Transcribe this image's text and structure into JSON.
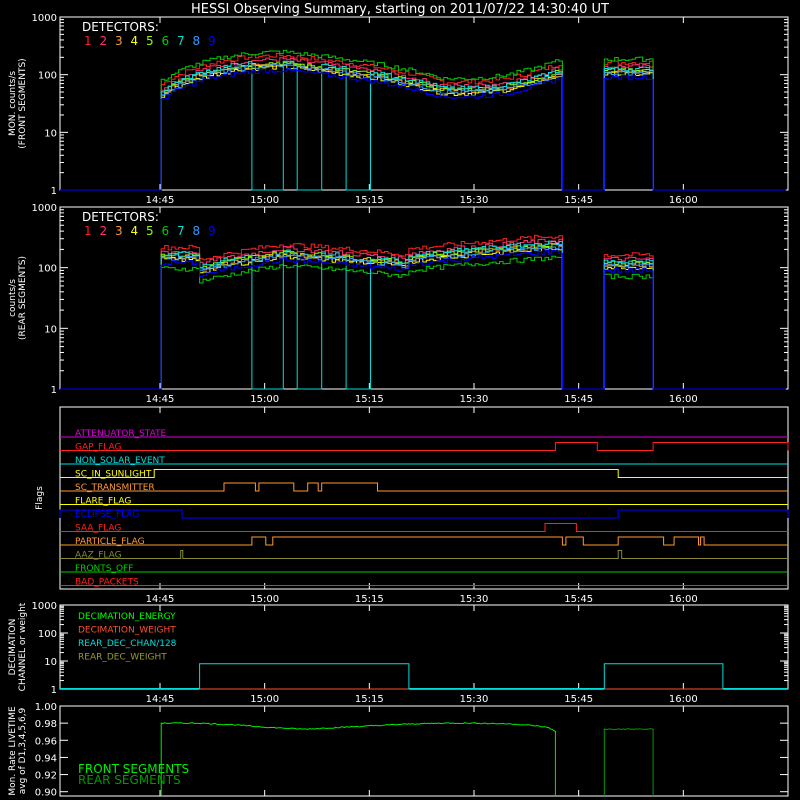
{
  "title": "HESSI Observing Summary, starting on 2011/07/22 14:30:40 UT",
  "time_ticks": [
    "14:45",
    "15:00",
    "15:15",
    "15:30",
    "15:45",
    "16:00"
  ],
  "time_tick_minutes": [
    14.33,
    29.33,
    44.33,
    59.33,
    74.33,
    89.33
  ],
  "time_range_minutes": [
    0,
    104.33
  ],
  "detector_colors": [
    "#ff2020",
    "#ff3070",
    "#ff9933",
    "#ffff00",
    "#88ff00",
    "#00cc00",
    "#00dddd",
    "#3399ff",
    "#0000ff"
  ],
  "chart_data": [
    {
      "type": "line",
      "panel": "front",
      "ylabel": "MON. counts/s (FRONT SEGMENTS)",
      "ylabel_lines": [
        "MON. counts/s",
        "(FRONT SEGMENTS)"
      ],
      "yscale": "log",
      "ylim": [
        1,
        1000
      ],
      "ytick_labels": [
        "1",
        "10",
        "100",
        "1000"
      ],
      "legend_title": "DETECTORS:",
      "legend_items": [
        "1",
        "2",
        "3",
        "4",
        "5",
        "6",
        "7",
        "8",
        "9"
      ],
      "data_gaps_minutes": [
        [
          0,
          14.5
        ],
        [
          72,
          78
        ],
        [
          85,
          104.33
        ]
      ],
      "typical_counts": {
        "start": 50,
        "peak_time_min": 32,
        "peak": 160,
        "dip_time_min": 55,
        "dip": 55,
        "end_before_gap": 120,
        "after_gap": 120
      },
      "detector_spread_factor": [
        0.5,
        2.0
      ],
      "det7_dropouts_minutes": [
        [
          27.5,
          32
        ],
        [
          34,
          37.5
        ],
        [
          41,
          44.5
        ]
      ]
    },
    {
      "type": "line",
      "panel": "rear",
      "ylabel": "counts/s (REAR SEGMENTS)",
      "ylabel_lines": [
        "counts/s",
        "(REAR SEGMENTS)"
      ],
      "yscale": "log",
      "ylim": [
        1,
        1000
      ],
      "ytick_labels": [
        "1",
        "10",
        "100",
        "1000"
      ],
      "legend_title": "DETECTORS:",
      "legend_items": [
        "1",
        "2",
        "3",
        "4",
        "5",
        "6",
        "7",
        "8",
        "9"
      ],
      "data_gaps_minutes": [
        [
          0,
          14.5
        ],
        [
          72,
          78
        ],
        [
          85,
          104.33
        ]
      ],
      "typical_counts": {
        "start": 160,
        "drop_time_min": 20,
        "after_drop": 100,
        "peak_time_min": 32,
        "peak": 180,
        "step_time_min": 50,
        "step_value": 150,
        "end_before_gap": 250,
        "after_gap": 120
      },
      "det7_dropouts_minutes": [
        [
          27.5,
          32
        ],
        [
          34,
          37.5
        ],
        [
          41,
          44.5
        ]
      ]
    },
    {
      "type": "flags",
      "ylabel": "Flags",
      "flags": [
        {
          "name": "ATTENUATOR_STATE",
          "color": "#dd00dd",
          "segments": []
        },
        {
          "name": "GAP_FLAG",
          "color": "#ff2020",
          "segments": [
            [
              71,
              77
            ],
            [
              85,
              104.33
            ]
          ]
        },
        {
          "name": "NON_SOLAR_EVENT",
          "color": "#00dddd",
          "segments": []
        },
        {
          "name": "SC_IN_SUNLIGHT",
          "color": "#ffff00",
          "segments": [
            [
              13.5,
              80
            ]
          ]
        },
        {
          "name": "SC_TRANSMITTER",
          "color": "#ff9933",
          "segments": [
            [
              23.5,
              28
            ],
            [
              28.5,
              33.5
            ],
            [
              35.5,
              37
            ],
            [
              37.5,
              45.5
            ]
          ]
        },
        {
          "name": "FLARE_FLAG",
          "color": "#ffff00",
          "segments": []
        },
        {
          "name": "ECLIPSE_FLAG",
          "color": "#0000ff",
          "segments": [
            [
              0,
              17.5
            ],
            [
              80,
              104.33
            ]
          ]
        },
        {
          "name": "SAA_FLAG",
          "color": "#ff2020",
          "segments": [
            [
              69.5,
              74
            ]
          ]
        },
        {
          "name": "PARTICLE_FLAG",
          "color": "#ff9933",
          "segments": [
            [
              27.5,
              29.5
            ],
            [
              30.5,
              72
            ],
            [
              72.5,
              75
            ],
            [
              80,
              86.5
            ],
            [
              88,
              91.5
            ],
            [
              91.8,
              92.3
            ]
          ]
        },
        {
          "name": "AAZ_FLAG",
          "color": "#888833",
          "segments": [
            [
              17.3,
              17.6
            ],
            [
              80,
              80.5
            ]
          ]
        },
        {
          "name": "FRONTS_OFF",
          "color": "#00cc00",
          "segments": []
        },
        {
          "name": "BAD_PACKETS",
          "color": "#ff2020",
          "segments": []
        }
      ]
    },
    {
      "type": "line",
      "panel": "decimation",
      "ylabel": "DECIMATION CHANNEL or weight",
      "ylabel_lines": [
        "DECIMATION",
        "CHANNEL or weight"
      ],
      "yscale": "log",
      "ylim": [
        1,
        1000
      ],
      "ytick_labels": [
        "1",
        "10",
        "100",
        "1000"
      ],
      "series": [
        {
          "name": "DECIMATION_ENERGY",
          "color": "#00ff00",
          "value": 0,
          "segments": []
        },
        {
          "name": "DECIMATION_WEIGHT",
          "color": "#ff5030",
          "value": 1,
          "segments": [
            [
              20,
              50
            ],
            [
              78,
              95
            ]
          ]
        },
        {
          "name": "REAR_DEC_CHAN/128",
          "color": "#00dddd",
          "value": 8,
          "segments": [
            [
              20,
              50
            ],
            [
              78,
              95
            ]
          ]
        },
        {
          "name": "REAR_DEC_WEIGHT",
          "color": "#999933",
          "value": 0,
          "segments": []
        }
      ]
    },
    {
      "type": "line",
      "panel": "livetime",
      "ylabel": "Mon. Rate LIVETIME avg of D1,3,4,5,6,9",
      "ylabel_lines": [
        "Mon. Rate LIVETIME",
        "avg of D1,3,4,5,6,9"
      ],
      "ylim": [
        0.895,
        1.0
      ],
      "yticks": [
        0.9,
        0.92,
        0.94,
        0.96,
        0.98,
        1.0
      ],
      "ytick_labels": [
        "0.90",
        "0.92",
        "0.94",
        "0.96",
        "0.98",
        "1.00"
      ],
      "series": [
        {
          "name": "FRONT SEGMENTS",
          "color": "#00ee00",
          "x": [
            14.5,
            20,
            25,
            30,
            35,
            40,
            45,
            50,
            55,
            60,
            65,
            68,
            70,
            71
          ],
          "y": [
            0.98,
            0.98,
            0.978,
            0.975,
            0.973,
            0.975,
            0.977,
            0.979,
            0.98,
            0.98,
            0.979,
            0.977,
            0.975,
            0.97
          ]
        },
        {
          "name": "REAR SEGMENTS",
          "color": "#009900",
          "x": [
            78,
            79,
            80,
            81,
            82,
            83,
            84,
            85
          ],
          "y": [
            0.973,
            0.973,
            0.973,
            0.973,
            0.973,
            0.973,
            0.973,
            0.973
          ]
        }
      ]
    }
  ]
}
